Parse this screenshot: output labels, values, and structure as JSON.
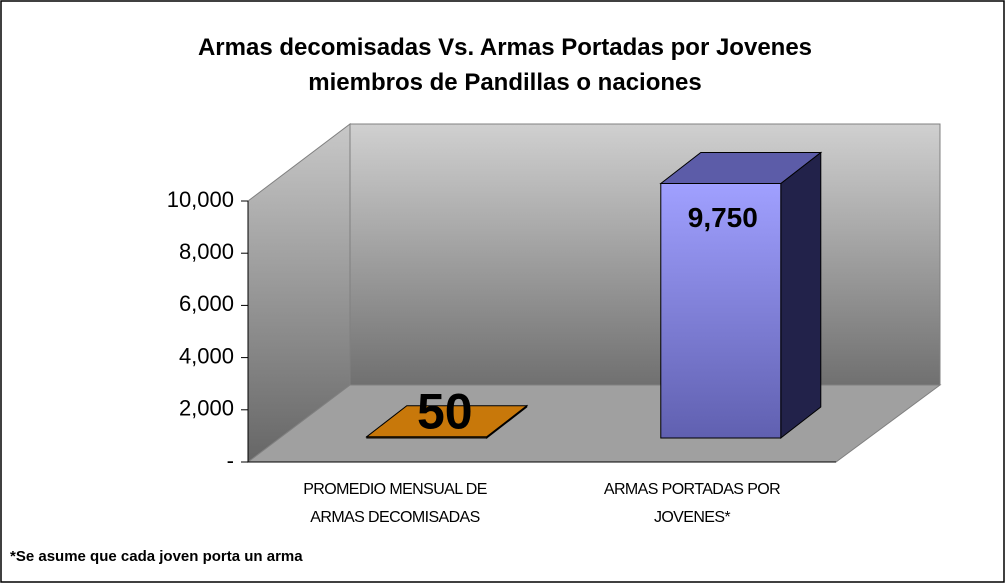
{
  "chart_data": {
    "type": "bar3d",
    "title": "Armas decomisadas Vs. Armas Portadas por Jovenes miembros de Pandillas o naciones",
    "categories": [
      "PROMEDIO MENSUAL DE ARMAS DECOMISADAS",
      "ARMAS PORTADAS POR JOVENES*"
    ],
    "values": [
      50,
      9750
    ],
    "value_labels": [
      "50",
      "9,750"
    ],
    "colors": [
      "#c8780a",
      "#8c8ce6"
    ],
    "ylim": [
      0,
      10000
    ],
    "yticks": [
      {
        "value": 0,
        "label": "-"
      },
      {
        "value": 2000,
        "label": "2,000"
      },
      {
        "value": 4000,
        "label": "4,000"
      },
      {
        "value": 6000,
        "label": "6,000"
      },
      {
        "value": 8000,
        "label": "8,000"
      },
      {
        "value": 10000,
        "label": "10,000"
      }
    ],
    "grid": false,
    "footnote": "*Se asume que cada joven porta un arma"
  }
}
